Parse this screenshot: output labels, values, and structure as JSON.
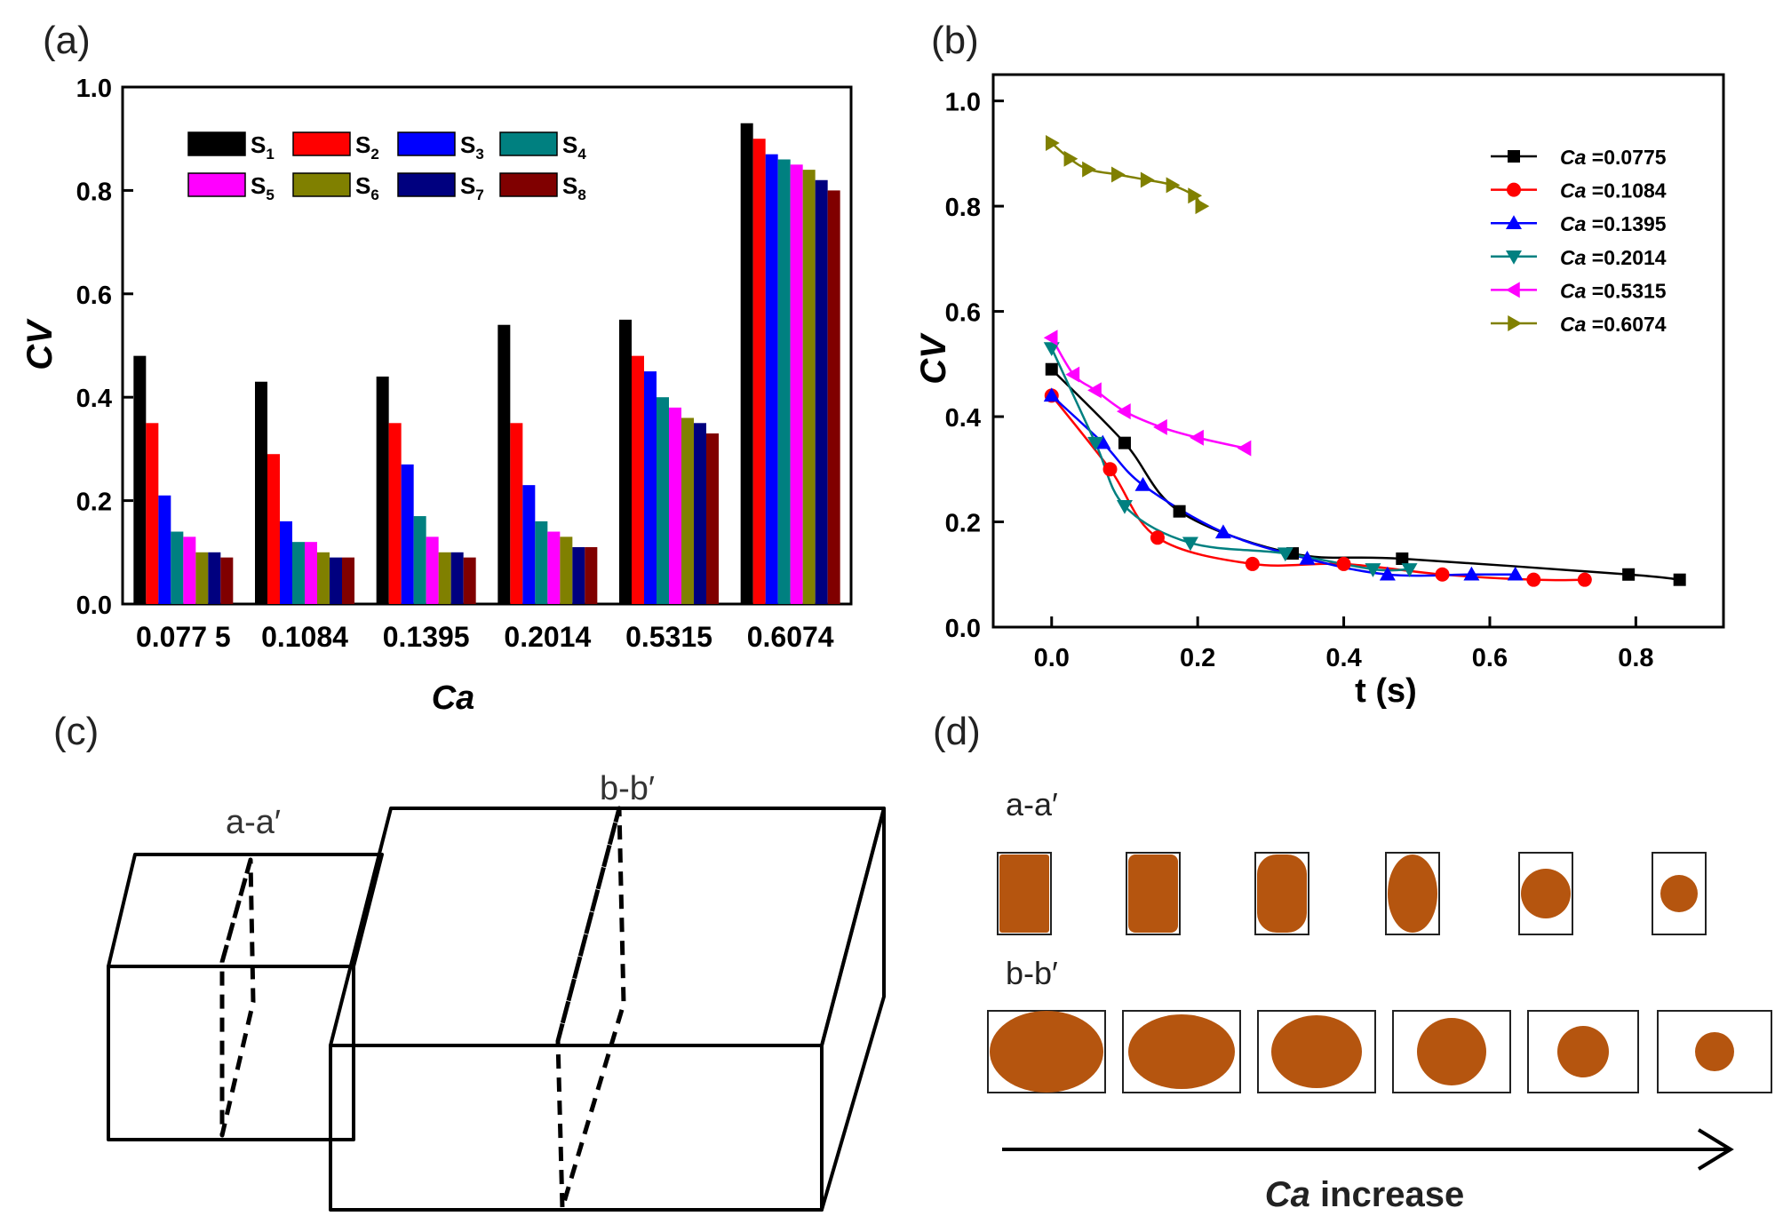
{
  "panel_labels": {
    "a": "(a)",
    "b": "(b)",
    "c": "(c)",
    "d": "(d)"
  },
  "chart_data": [
    {
      "type": "bar",
      "panel": "(a)",
      "title": "",
      "xlabel": "Ca",
      "ylabel": "CV",
      "ylim": [
        0,
        1.0
      ],
      "yticks": [
        "0.0",
        "0.2",
        "0.4",
        "0.6",
        "0.8",
        "1.0"
      ],
      "categories": [
        "0.077 5",
        "0.1084",
        "0.1395",
        "0.2014",
        "0.5315",
        "0.6074"
      ],
      "series": [
        {
          "name": "S1",
          "label": "S",
          "sub": "1",
          "color": "#000000",
          "values": [
            0.48,
            0.43,
            0.44,
            0.54,
            0.55,
            0.93
          ]
        },
        {
          "name": "S2",
          "label": "S",
          "sub": "2",
          "color": "#ff0000",
          "values": [
            0.35,
            0.29,
            0.35,
            0.35,
            0.48,
            0.9
          ]
        },
        {
          "name": "S3",
          "label": "S",
          "sub": "3",
          "color": "#0000ff",
          "values": [
            0.21,
            0.16,
            0.27,
            0.23,
            0.45,
            0.87
          ]
        },
        {
          "name": "S4",
          "label": "S",
          "sub": "4",
          "color": "#008080",
          "values": [
            0.14,
            0.12,
            0.17,
            0.16,
            0.4,
            0.86
          ]
        },
        {
          "name": "S5",
          "label": "S",
          "sub": "5",
          "color": "#ff00ff",
          "values": [
            0.13,
            0.12,
            0.13,
            0.14,
            0.38,
            0.85
          ]
        },
        {
          "name": "S6",
          "label": "S",
          "sub": "6",
          "color": "#808000",
          "values": [
            0.1,
            0.1,
            0.1,
            0.13,
            0.36,
            0.84
          ]
        },
        {
          "name": "S7",
          "label": "S",
          "sub": "7",
          "color": "#00007f",
          "values": [
            0.1,
            0.09,
            0.1,
            0.11,
            0.35,
            0.82
          ]
        },
        {
          "name": "S8",
          "label": "S",
          "sub": "8",
          "color": "#800000",
          "values": [
            0.09,
            0.09,
            0.09,
            0.11,
            0.33,
            0.8
          ]
        }
      ]
    },
    {
      "type": "line",
      "panel": "(b)",
      "title": "",
      "xlabel": "t (s)",
      "ylabel": "CV",
      "xlim": [
        -0.08,
        0.92
      ],
      "ylim": [
        0,
        1.05
      ],
      "xticks": [
        "0.0",
        "0.2",
        "0.4",
        "0.6",
        "0.8"
      ],
      "yticks": [
        "0.0",
        "0.2",
        "0.4",
        "0.6",
        "0.8",
        "1.0"
      ],
      "series": [
        {
          "name": "Ca =0.0775",
          "prefix": "Ca",
          "value": " =0.0775",
          "color": "#000000",
          "marker": "square",
          "x": [
            0.0,
            0.1,
            0.175,
            0.33,
            0.48,
            0.79,
            0.86
          ],
          "y": [
            0.49,
            0.35,
            0.22,
            0.14,
            0.13,
            0.1,
            0.09
          ]
        },
        {
          "name": "Ca =0.1084",
          "prefix": "Ca",
          "value": " =0.1084",
          "color": "#ff0000",
          "marker": "circle",
          "x": [
            0.0,
            0.08,
            0.145,
            0.275,
            0.4,
            0.535,
            0.66,
            0.73
          ],
          "y": [
            0.44,
            0.3,
            0.17,
            0.12,
            0.12,
            0.1,
            0.09,
            0.09
          ]
        },
        {
          "name": "Ca =0.1395",
          "prefix": "Ca",
          "value": " =0.1395",
          "color": "#0000ff",
          "marker": "triangle-up",
          "x": [
            0.0,
            0.07,
            0.125,
            0.235,
            0.35,
            0.46,
            0.575,
            0.635
          ],
          "y": [
            0.44,
            0.35,
            0.27,
            0.18,
            0.13,
            0.1,
            0.1,
            0.1
          ]
        },
        {
          "name": "Ca =0.2014",
          "prefix": "Ca",
          "value": " =0.2014",
          "color": "#008080",
          "marker": "triangle-down",
          "x": [
            0.0,
            0.06,
            0.1,
            0.19,
            0.32,
            0.44,
            0.49
          ],
          "y": [
            0.53,
            0.35,
            0.23,
            0.16,
            0.14,
            0.11,
            0.11
          ]
        },
        {
          "name": "Ca =0.5315",
          "prefix": "Ca",
          "value": " =0.5315",
          "color": "#ff00ff",
          "marker": "triangle-left",
          "x": [
            0.0,
            0.03,
            0.06,
            0.1,
            0.15,
            0.2,
            0.265
          ],
          "y": [
            0.55,
            0.48,
            0.45,
            0.41,
            0.38,
            0.36,
            0.34
          ]
        },
        {
          "name": "Ca =0.6074",
          "prefix": "Ca",
          "value": " =0.6074",
          "color": "#808000",
          "marker": "triangle-right",
          "x": [
            0.0,
            0.025,
            0.05,
            0.09,
            0.13,
            0.165,
            0.195,
            0.205
          ],
          "y": [
            0.92,
            0.89,
            0.87,
            0.86,
            0.85,
            0.84,
            0.82,
            0.8
          ]
        }
      ]
    }
  ],
  "diagram_c": {
    "section_a": "a-a′",
    "section_b": "b-b′"
  },
  "diagram_d": {
    "row_a_label": "a-a′",
    "row_b_label": "b-b′",
    "arrow_label_ca": "Ca",
    "arrow_label_text": " increase",
    "droplet_color": "#b5550f"
  }
}
